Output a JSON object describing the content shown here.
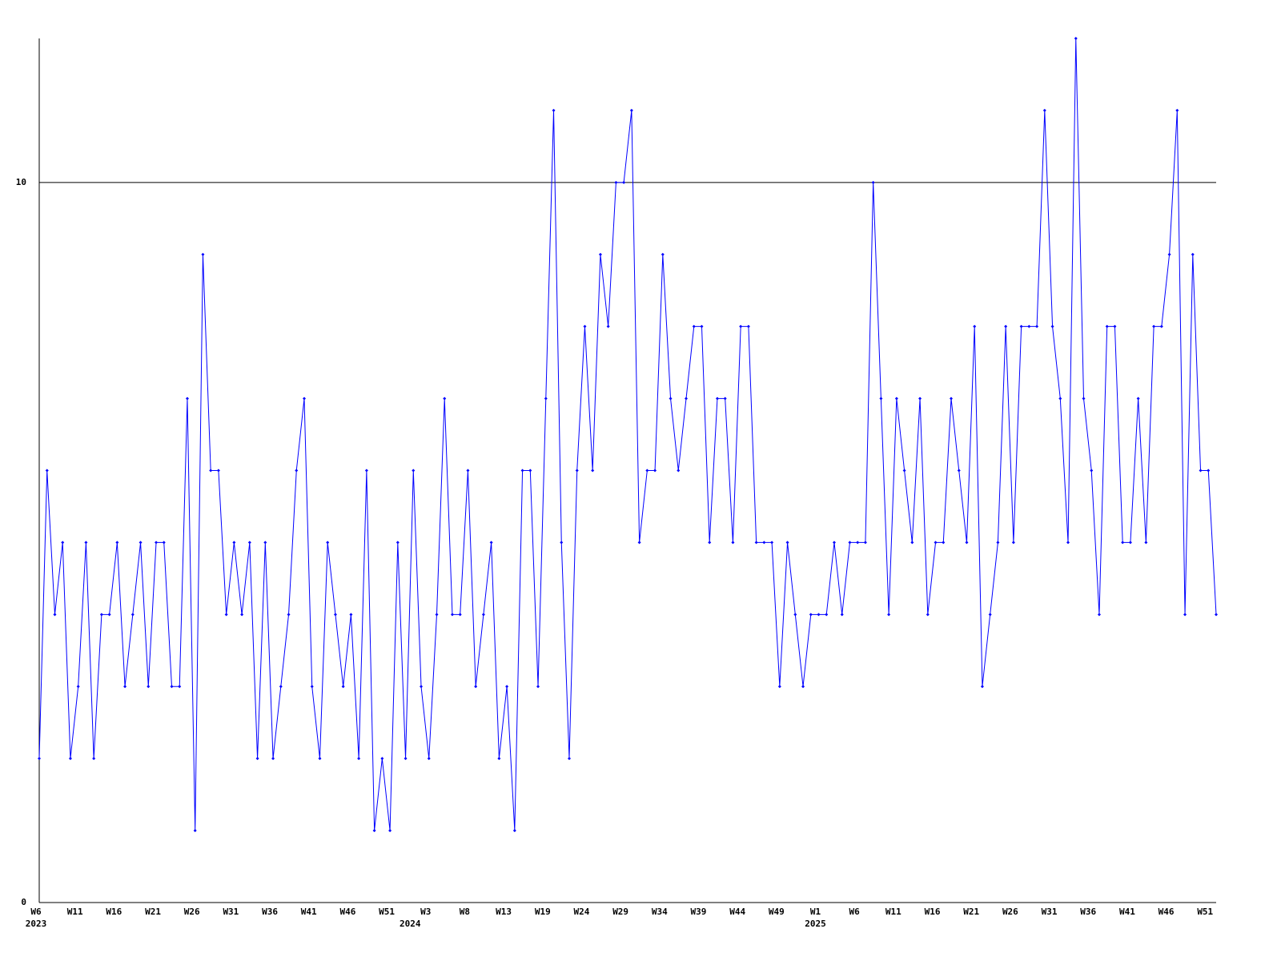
{
  "chart_data": {
    "type": "line",
    "categories": [
      "W6",
      null,
      null,
      null,
      null,
      "W11",
      null,
      null,
      null,
      null,
      "W16",
      null,
      null,
      null,
      null,
      "W21",
      null,
      null,
      null,
      null,
      "W26",
      null,
      null,
      null,
      null,
      "W31",
      null,
      null,
      null,
      null,
      "W36",
      null,
      null,
      null,
      null,
      "W41",
      null,
      null,
      null,
      null,
      "W46",
      null,
      null,
      null,
      null,
      "W51",
      null,
      null,
      null,
      null,
      "W3",
      null,
      null,
      null,
      null,
      "W8",
      null,
      null,
      null,
      null,
      "W13",
      null,
      null,
      null,
      null,
      "W19",
      null,
      null,
      null,
      null,
      "W24",
      null,
      null,
      null,
      null,
      "W29",
      null,
      null,
      null,
      null,
      "W34",
      null,
      null,
      null,
      null,
      "W39",
      null,
      null,
      null,
      null,
      "W44",
      null,
      null,
      null,
      null,
      "W49",
      null,
      null,
      null,
      null,
      "W1",
      null,
      null,
      null,
      null,
      "W6",
      null,
      null,
      null,
      null,
      "W11",
      null,
      null,
      null,
      null,
      "W16",
      null,
      null,
      null,
      null,
      "W21",
      null,
      null,
      null,
      null,
      "W26",
      null,
      null,
      null,
      null,
      "W31",
      null,
      null,
      null,
      null,
      "W36",
      null,
      null,
      null,
      null,
      "W41",
      null,
      null,
      null,
      null,
      "W46",
      null,
      null,
      null,
      null,
      "W51",
      null
    ],
    "years": [
      "2023",
      null,
      null,
      null,
      null,
      null,
      null,
      null,
      null,
      null,
      null,
      null,
      null,
      null,
      null,
      null,
      null,
      null,
      null,
      null,
      null,
      null,
      null,
      null,
      null,
      null,
      null,
      null,
      null,
      null,
      null,
      null,
      null,
      null,
      null,
      null,
      null,
      null,
      null,
      null,
      null,
      null,
      null,
      null,
      null,
      null,
      null,
      null,
      "2024",
      null,
      null,
      null,
      null,
      null,
      null,
      null,
      null,
      null,
      null,
      null,
      null,
      null,
      null,
      null,
      null,
      null,
      null,
      null,
      null,
      null,
      null,
      null,
      null,
      null,
      null,
      null,
      null,
      null,
      null,
      null,
      null,
      null,
      null,
      null,
      null,
      null,
      null,
      null,
      null,
      null,
      null,
      null,
      null,
      null,
      null,
      null,
      null,
      null,
      null,
      null,
      "2025",
      null,
      null,
      null,
      null,
      null,
      null,
      null,
      null,
      null,
      null,
      null,
      null,
      null,
      null,
      null,
      null,
      null,
      null,
      null,
      null,
      null,
      null,
      null,
      null,
      null,
      null,
      null,
      null,
      null,
      null,
      null,
      null,
      null,
      null,
      null,
      null,
      null,
      null,
      null,
      null,
      null,
      null,
      null,
      null,
      null,
      null,
      null,
      null,
      null,
      null,
      null
    ],
    "series": [
      {
        "color": "#0000ff",
        "values": [
          2,
          6,
          4,
          5,
          2,
          3,
          5,
          2,
          4,
          4,
          5,
          3,
          4,
          5,
          3,
          5,
          5,
          3,
          3,
          7,
          1,
          9,
          6,
          6,
          4,
          5,
          4,
          5,
          2,
          5,
          2,
          3,
          4,
          6,
          7,
          3,
          2,
          5,
          4,
          3,
          4,
          2,
          6,
          1,
          2,
          1,
          5,
          2,
          6,
          3,
          2,
          4,
          7,
          4,
          4,
          6,
          3,
          4,
          5,
          2,
          3,
          1,
          6,
          6,
          3,
          7,
          11,
          5,
          2,
          6,
          8,
          6,
          9,
          8,
          10,
          10,
          11,
          5,
          6,
          6,
          9,
          7,
          6,
          7,
          8,
          8,
          5,
          7,
          7,
          5,
          8,
          8,
          5,
          5,
          5,
          3,
          5,
          4,
          3,
          4,
          4,
          4,
          5,
          4,
          5,
          5,
          5,
          10,
          7,
          4,
          7,
          6,
          5,
          7,
          4,
          5,
          5,
          7,
          6,
          5,
          8,
          3,
          4,
          5,
          8,
          5,
          8,
          8,
          8,
          11,
          8,
          7,
          5,
          12,
          7,
          6,
          4,
          8,
          8,
          5,
          5,
          7,
          5,
          8,
          8,
          9,
          11,
          4,
          9,
          6,
          6,
          4
        ]
      }
    ],
    "ylim": [
      0,
      12
    ],
    "yticks": [
      0,
      10
    ],
    "grid": true
  }
}
